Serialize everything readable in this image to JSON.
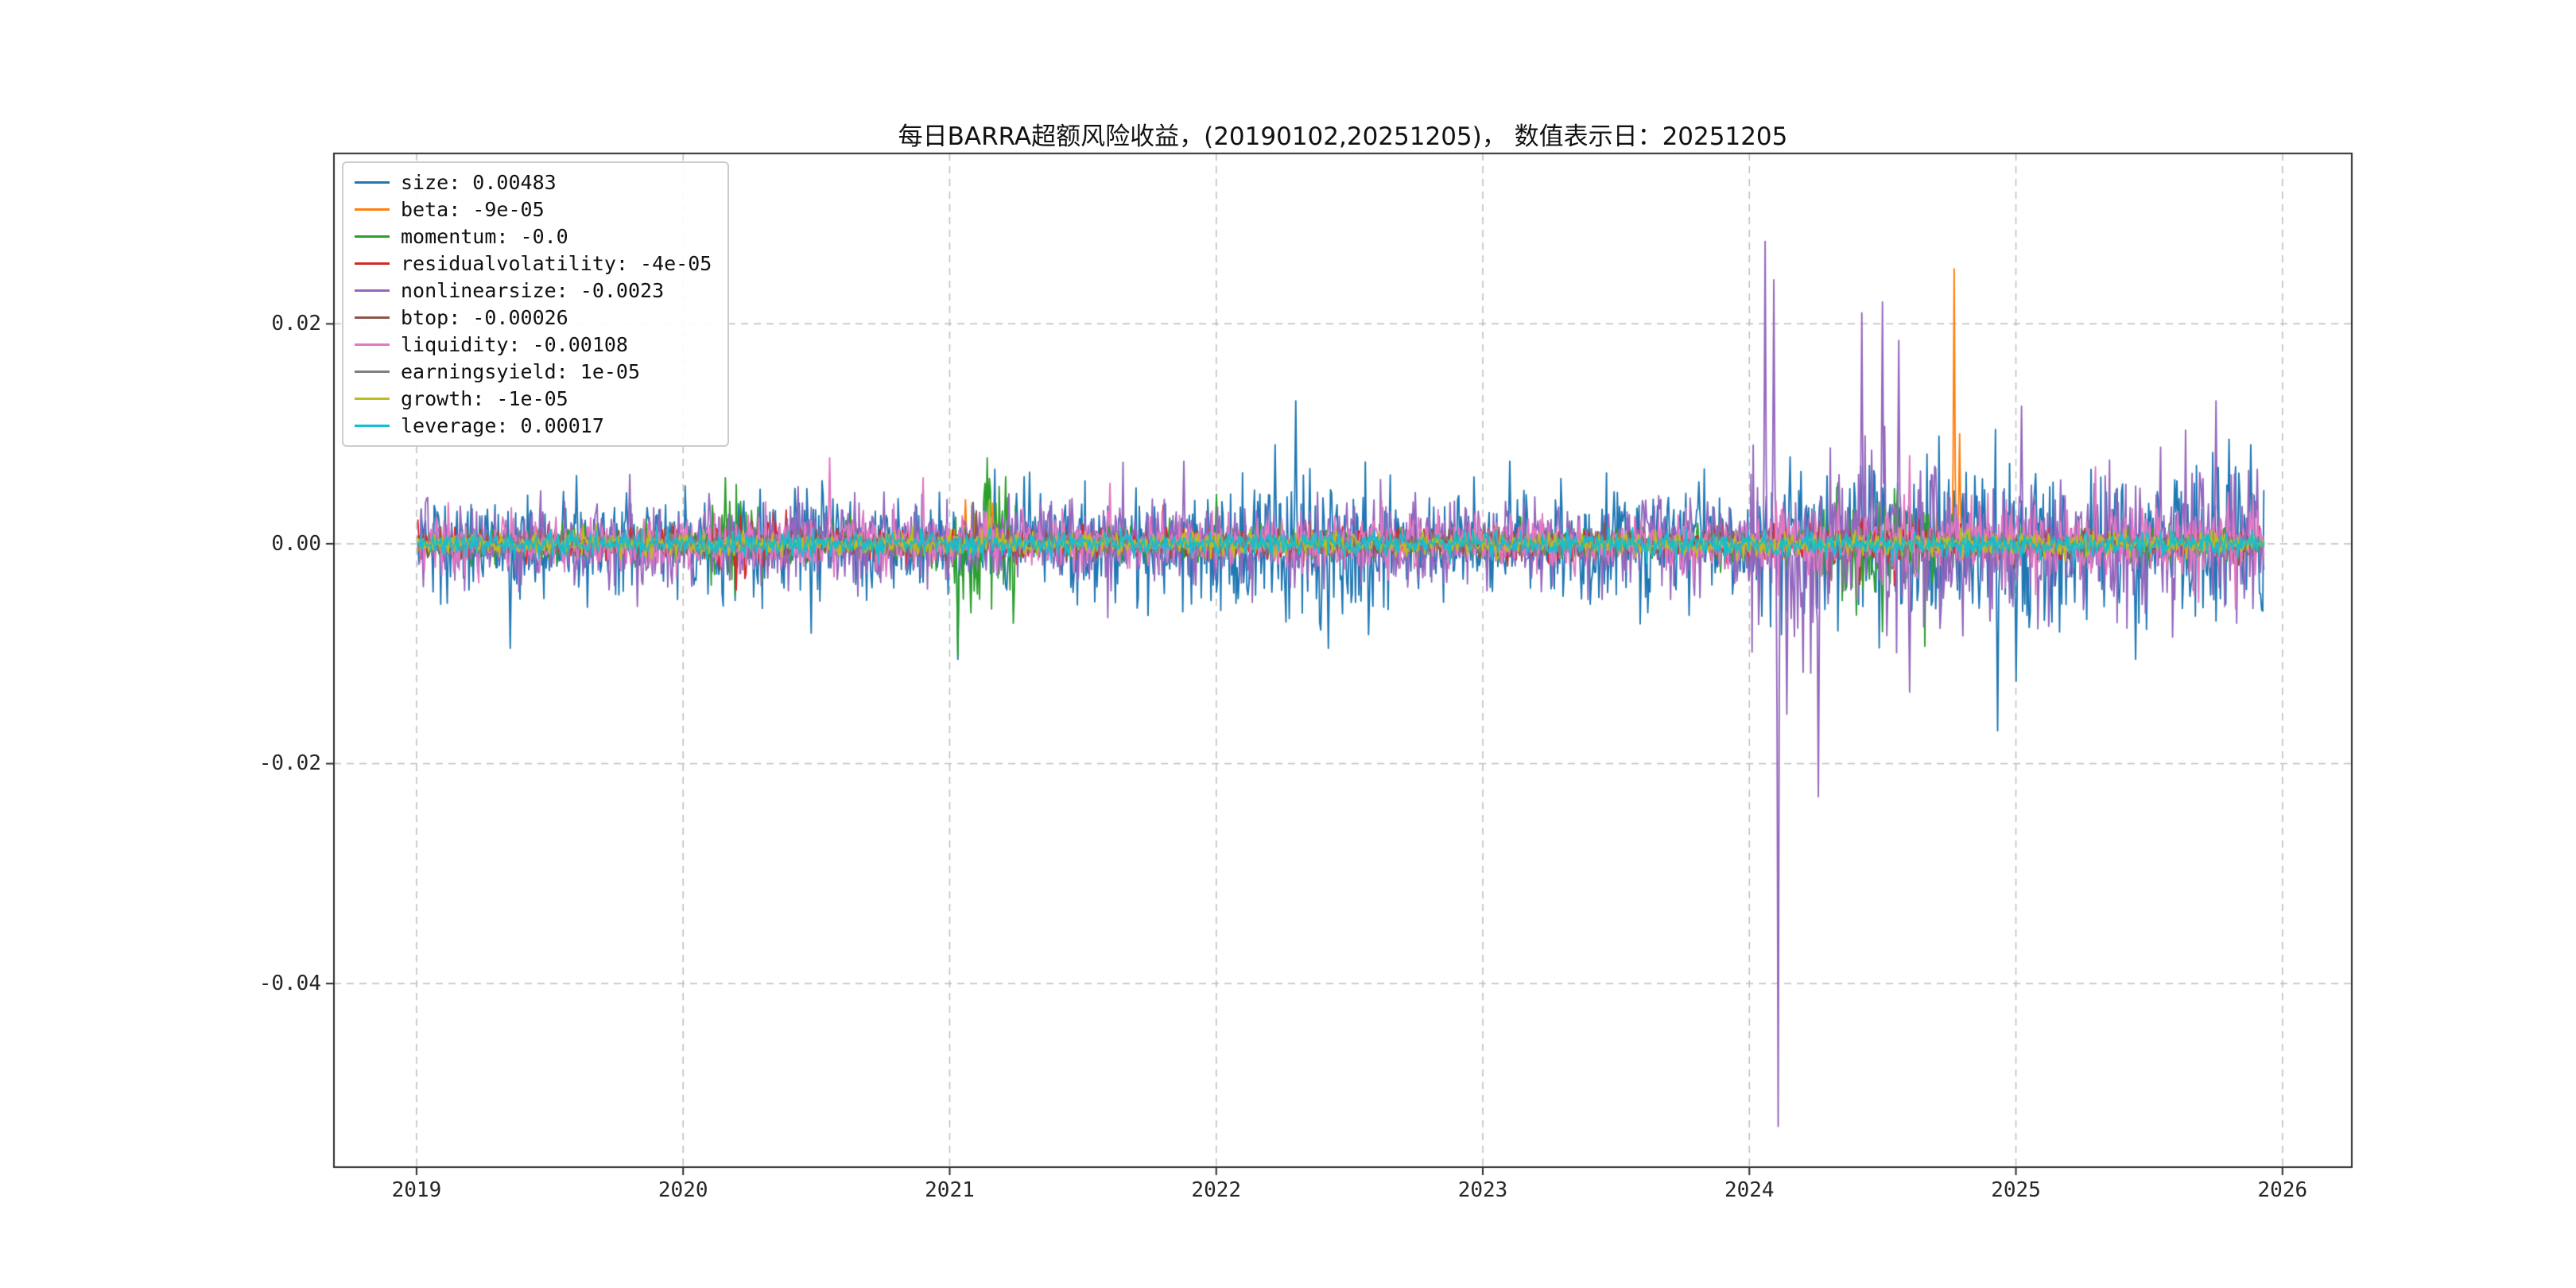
{
  "chart_data": {
    "type": "line",
    "title": "每日BARRA超额风险收益，(20190102,20251205)，  数值表示日：20251205",
    "x_tick_labels": [
      "2019",
      "2020",
      "2021",
      "2022",
      "2023",
      "2024",
      "2025",
      "2026"
    ],
    "x_tick_values": [
      2019,
      2020,
      2021,
      2022,
      2023,
      2024,
      2025,
      2026
    ],
    "y_tick_labels": [
      "0.02",
      "0.00",
      "-0.02",
      "-0.04"
    ],
    "y_tick_values": [
      0.02,
      0.0,
      -0.02,
      -0.04
    ],
    "xlim": [
      2018.69,
      2026.26
    ],
    "ylim": [
      -0.0567,
      0.0355
    ],
    "x_start": 2019.005,
    "x_end": 2025.93,
    "n_points": 1700,
    "grid": true,
    "grid_style": "dashed",
    "grid_color": "#bdbdbd",
    "spine_color": "#2b2b2b",
    "legend_position": "upper left",
    "series": [
      {
        "name": "size",
        "legend": "size: 0.00483",
        "last": 0.00483,
        "color": "#1f77b4",
        "sigma": 0.0024,
        "seed": 101,
        "vol": [
          [
            2022.0,
            2022.7,
            1.35
          ],
          [
            2024.0,
            2025.95,
            1.55
          ]
        ],
        "events": [
          [
            2019.35,
            -0.0095
          ],
          [
            2019.6,
            0.0062
          ],
          [
            2021.03,
            -0.0105
          ],
          [
            2021.3,
            0.0065
          ],
          [
            2022.22,
            0.009
          ],
          [
            2022.3,
            0.013
          ],
          [
            2022.42,
            -0.0095
          ],
          [
            2023.1,
            0.0075
          ],
          [
            2024.93,
            -0.017
          ],
          [
            2025.0,
            -0.0125
          ],
          [
            2025.45,
            -0.0105
          ],
          [
            2025.8,
            0.0095
          ],
          [
            2025.88,
            0.009
          ]
        ]
      },
      {
        "name": "beta",
        "legend": "beta: -9e-05",
        "last": -9e-05,
        "color": "#ff7f0e",
        "sigma": 0.00045,
        "seed": 102,
        "vol": [
          [
            2021.0,
            2021.2,
            3.0
          ],
          [
            2024.7,
            2024.85,
            2.0
          ]
        ],
        "events": [
          [
            2021.06,
            0.004
          ],
          [
            2024.77,
            0.025
          ],
          [
            2024.79,
            0.01
          ]
        ]
      },
      {
        "name": "momentum",
        "legend": "momentum: -0.0",
        "last": -0.0,
        "color": "#2ca02c",
        "sigma": 0.0008,
        "seed": 103,
        "vol": [
          [
            2020.1,
            2020.3,
            2.5
          ],
          [
            2021.0,
            2021.25,
            4.0
          ],
          [
            2024.25,
            2024.7,
            3.5
          ]
        ],
        "events": [
          [
            2020.16,
            0.006
          ],
          [
            2021.03,
            -0.0102
          ],
          [
            2021.14,
            0.0078
          ],
          [
            2022.0,
            0.0045
          ],
          [
            2024.4,
            -0.0065
          ],
          [
            2024.5,
            -0.008
          ]
        ]
      },
      {
        "name": "residualvolatility",
        "legend": "residualvolatility: -4e-05",
        "last": -4e-05,
        "color": "#d62728",
        "sigma": 0.0007,
        "seed": 104,
        "vol": [
          [
            2020.1,
            2020.4,
            2.0
          ],
          [
            2024.2,
            2024.8,
            1.8
          ]
        ],
        "events": [
          [
            2020.2,
            -0.0042
          ],
          [
            2021.8,
            0.0035
          ],
          [
            2024.3,
            -0.004
          ]
        ]
      },
      {
        "name": "nonlinearsize",
        "legend": "nonlinearsize: -0.0023",
        "last": -0.0023,
        "color": "#9467bd",
        "sigma": 0.0019,
        "seed": 105,
        "vol": [
          [
            2024.0,
            2024.75,
            2.3
          ],
          [
            2024.75,
            2025.95,
            1.7
          ]
        ],
        "events": [
          [
            2019.8,
            0.0063
          ],
          [
            2021.88,
            0.0075
          ],
          [
            2024.06,
            0.0275
          ],
          [
            2024.09,
            0.024
          ],
          [
            2024.11,
            -0.053
          ],
          [
            2024.14,
            -0.0155
          ],
          [
            2024.26,
            -0.023
          ],
          [
            2024.42,
            0.021
          ],
          [
            2024.5,
            0.022
          ],
          [
            2024.56,
            0.0185
          ],
          [
            2024.6,
            -0.0135
          ],
          [
            2025.02,
            0.0125
          ],
          [
            2025.75,
            0.013
          ]
        ]
      },
      {
        "name": "btop",
        "legend": "btop: -0.00026",
        "last": -0.00026,
        "color": "#8c564b",
        "sigma": 0.0006,
        "seed": 106,
        "vol": [],
        "events": [
          [
            2021.1,
            0.003
          ]
        ]
      },
      {
        "name": "liquidity",
        "legend": "liquidity: -0.00108",
        "last": -0.00108,
        "color": "#e377c2",
        "sigma": 0.0012,
        "seed": 107,
        "vol": [
          [
            2024.0,
            2025.95,
            1.5
          ]
        ],
        "events": [
          [
            2020.55,
            0.0078
          ],
          [
            2020.9,
            0.006
          ],
          [
            2021.6,
            0.0055
          ],
          [
            2024.6,
            0.008
          ],
          [
            2025.3,
            0.007
          ]
        ]
      },
      {
        "name": "earningsyield",
        "legend": "earningsyield: 1e-05",
        "last": 1e-05,
        "color": "#7f7f7f",
        "sigma": 0.00045,
        "seed": 108,
        "vol": [],
        "events": []
      },
      {
        "name": "growth",
        "legend": "growth: -1e-05",
        "last": -1e-05,
        "color": "#bcbd22",
        "sigma": 0.0005,
        "seed": 109,
        "vol": [],
        "events": [
          [
            2021.15,
            0.004
          ]
        ]
      },
      {
        "name": "leverage",
        "legend": "leverage: 0.00017",
        "last": 0.00017,
        "color": "#17becf",
        "sigma": 0.00055,
        "seed": 110,
        "vol": [],
        "events": []
      }
    ]
  }
}
